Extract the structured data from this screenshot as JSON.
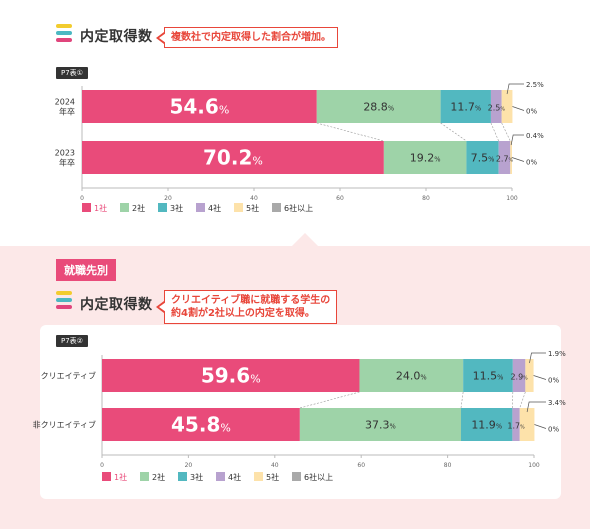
{
  "header_top": {
    "title": "内定取得数",
    "callout": "複数社で内定取得した割合が増加。",
    "table_tag": "P7表①"
  },
  "section": {
    "label": "就職先別"
  },
  "header_bottom": {
    "title": "内定取得数",
    "callout_line1": "クリエイティブ職に就職する学生の",
    "callout_line2": "約4割が2社以上の内定を取得。",
    "table_tag": "P7表②"
  },
  "stripe_colors": [
    "#f2cc2e",
    "#4bb8c2",
    "#e0457c"
  ],
  "chart_data": [
    {
      "type": "bar",
      "orientation": "horizontal",
      "stacked": true,
      "categories": [
        "2024\n年卒",
        "2023\n年卒"
      ],
      "series": [
        {
          "name": "1社",
          "color": "#e94b7a",
          "values": [
            54.6,
            70.2
          ]
        },
        {
          "name": "2社",
          "color": "#9ed3a8",
          "values": [
            28.8,
            19.2
          ]
        },
        {
          "name": "3社",
          "color": "#52b8c0",
          "values": [
            11.7,
            7.5
          ]
        },
        {
          "name": "4社",
          "color": "#b8a2cf",
          "values": [
            2.5,
            2.7
          ]
        },
        {
          "name": "5社",
          "color": "#fde2aa",
          "values": [
            2.5,
            0.4
          ]
        },
        {
          "name": "6社以上",
          "color": "#a9a9a9",
          "values": [
            0,
            0
          ]
        }
      ],
      "xlim": [
        0,
        100
      ],
      "xticks": [
        0,
        20,
        40,
        60,
        80,
        100
      ],
      "legend": "bottom-left",
      "unit": "%"
    },
    {
      "type": "bar",
      "orientation": "horizontal",
      "stacked": true,
      "categories": [
        "クリエイティブ",
        "非クリエイティブ"
      ],
      "series": [
        {
          "name": "1社",
          "color": "#e94b7a",
          "values": [
            59.6,
            45.8
          ]
        },
        {
          "name": "2社",
          "color": "#9ed3a8",
          "values": [
            24.0,
            37.3
          ]
        },
        {
          "name": "3社",
          "color": "#52b8c0",
          "values": [
            11.5,
            11.9
          ]
        },
        {
          "name": "4社",
          "color": "#b8a2cf",
          "values": [
            2.9,
            1.7
          ]
        },
        {
          "name": "5社",
          "color": "#fde2aa",
          "values": [
            1.9,
            3.4
          ]
        },
        {
          "name": "6社以上",
          "color": "#a9a9a9",
          "values": [
            0,
            0
          ]
        }
      ],
      "xlim": [
        0,
        100
      ],
      "xticks": [
        0,
        20,
        40,
        60,
        80,
        100
      ],
      "legend": "bottom-left",
      "unit": "%"
    }
  ]
}
